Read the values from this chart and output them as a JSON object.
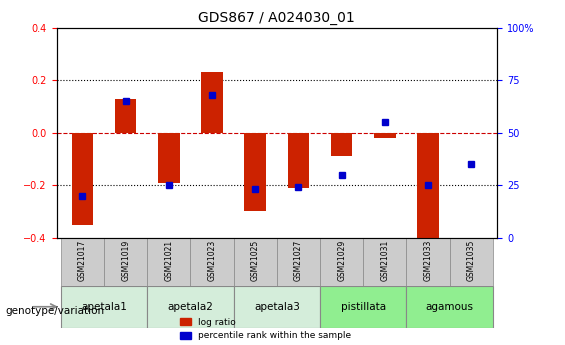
{
  "title": "GDS867 / A024030_01",
  "samples": [
    "GSM21017",
    "GSM21019",
    "GSM21021",
    "GSM21023",
    "GSM21025",
    "GSM21027",
    "GSM21029",
    "GSM21031",
    "GSM21033",
    "GSM21035"
  ],
  "log_ratio": [
    -0.35,
    0.13,
    -0.19,
    0.23,
    -0.3,
    -0.21,
    -0.09,
    -0.02,
    -0.41,
    0.0
  ],
  "percentile_rank": [
    20,
    65,
    25,
    68,
    23,
    24,
    30,
    55,
    25,
    35
  ],
  "bar_color": "#cc2200",
  "dot_color": "#0000cc",
  "ylim_left": [
    -0.4,
    0.4
  ],
  "ylim_right": [
    0,
    100
  ],
  "yticks_left": [
    -0.4,
    -0.2,
    0.0,
    0.2,
    0.4
  ],
  "yticks_right": [
    0,
    25,
    50,
    75,
    100
  ],
  "ytick_labels_right": [
    "0",
    "25",
    "50",
    "75",
    "100%"
  ],
  "groups": [
    {
      "name": "apetala1",
      "samples": [
        "GSM21017",
        "GSM21019"
      ],
      "color": "#d4edda"
    },
    {
      "name": "apetala2",
      "samples": [
        "GSM21021",
        "GSM21023"
      ],
      "color": "#d4edda"
    },
    {
      "name": "apetala3",
      "samples": [
        "GSM21025",
        "GSM21027"
      ],
      "color": "#d4edda"
    },
    {
      "name": "pistillata",
      "samples": [
        "GSM21029",
        "GSM21031"
      ],
      "color": "#90ee90"
    },
    {
      "name": "agamous",
      "samples": [
        "GSM21033",
        "GSM21035"
      ],
      "color": "#90ee90"
    }
  ],
  "genotype_label": "genotype/variation",
  "legend_red": "log ratio",
  "legend_blue": "percentile rank within the sample",
  "hline_zero_color": "#cc0000",
  "hline_dotted_color": "#000000",
  "bar_width": 0.5,
  "background_color": "#ffffff",
  "plot_bg_color": "#ffffff",
  "border_color": "#000000"
}
